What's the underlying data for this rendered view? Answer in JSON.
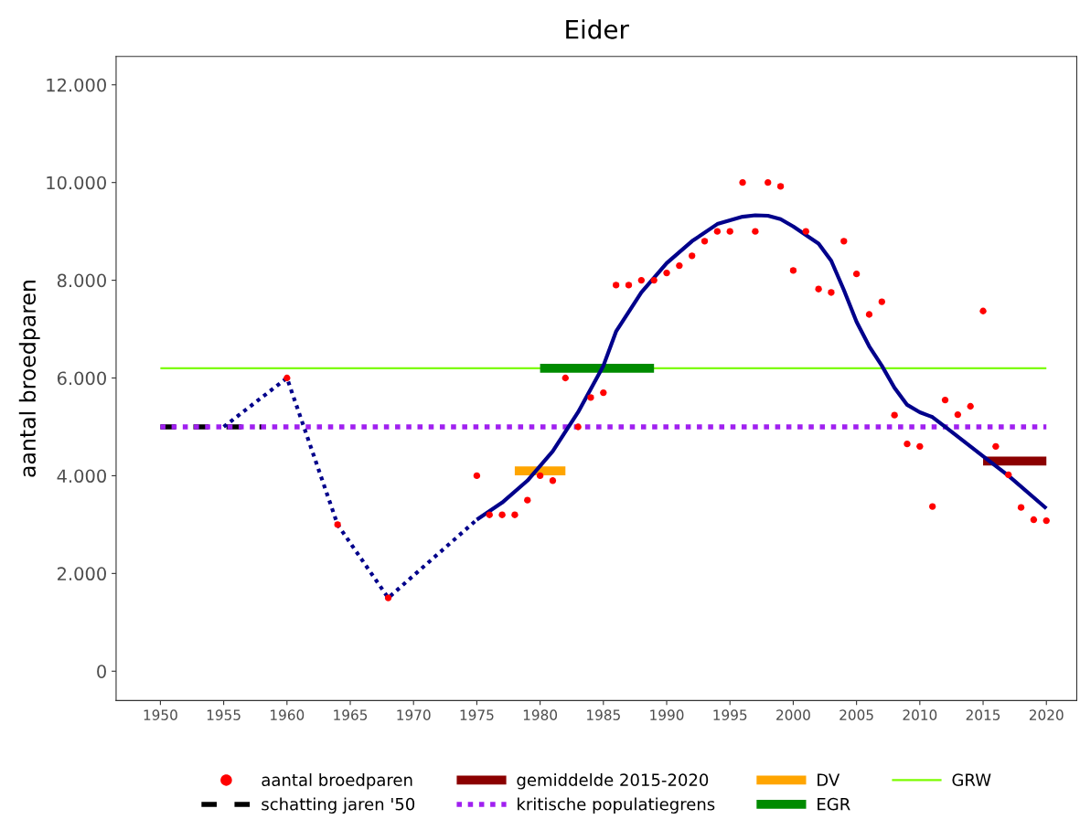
{
  "chart_data": {
    "type": "line",
    "title": "Eider",
    "ylabel": "aantal broedparen",
    "xlim": [
      1946.5,
      2022.4
    ],
    "xticks": [
      1950,
      1955,
      1960,
      1965,
      1970,
      1975,
      1980,
      1985,
      1990,
      1995,
      2000,
      2005,
      2010,
      2015,
      2020
    ],
    "ylim": [
      -600,
      12580
    ],
    "yticks": [
      0,
      {
        "value": 2000,
        "label": "2.000"
      },
      {
        "value": 4000,
        "label": "4.000"
      },
      {
        "value": 6000,
        "label": "6.000"
      },
      {
        "value": 8000,
        "label": "8.000"
      },
      {
        "value": 10000,
        "label": "10.000"
      },
      {
        "value": 12000,
        "label": "12.000"
      }
    ],
    "legend": "bottom",
    "series": [
      {
        "type": "scatter",
        "marker": "circle",
        "color": "#ff0000",
        "name": "aantal broedparen",
        "x": [
          1960,
          1964,
          1968,
          1975,
          1976,
          1977,
          1978,
          1979,
          1980,
          1981,
          1982,
          1983,
          1984,
          1985,
          1986,
          1987,
          1988,
          1989,
          1990,
          1991,
          1992,
          1993,
          1994,
          1995,
          1996,
          1997,
          1998,
          1999,
          2000,
          2001,
          2002,
          2003,
          2004,
          2005,
          2006,
          2007,
          2008,
          2009,
          2010,
          2011,
          2012,
          2013,
          2014,
          2015,
          2016,
          2017,
          2018,
          2019,
          2020
        ],
        "values": [
          6000,
          3000,
          1500,
          4000,
          3200,
          3200,
          3200,
          3500,
          4000,
          3900,
          6000,
          5000,
          5600,
          5700,
          7900,
          7900,
          8000,
          8000,
          8150,
          8300,
          8500,
          8800,
          9000,
          9000,
          10000,
          9000,
          10000,
          9920,
          8200,
          9000,
          7820,
          7750,
          8800,
          8130,
          7300,
          7560,
          5240,
          4650,
          4600,
          3370,
          5550,
          5250,
          5420,
          7370,
          4600,
          4020,
          3350,
          3100,
          3080
        ]
      },
      {
        "color": "#000000",
        "line_style": "dashed",
        "name": "schatting jaren '50",
        "x": [
          1950,
          1958
        ],
        "values": [
          5000,
          5000
        ]
      },
      {
        "color": "#8b0000",
        "line_style": "solid",
        "name": "gemiddelde 2015-2020",
        "x": [
          2015,
          2020
        ],
        "values": [
          4300,
          4300
        ]
      },
      {
        "color": "#a020f0",
        "line_style": "dotted",
        "name": "kritische populatiegrens",
        "x": [
          1950,
          2020
        ],
        "values": [
          5000,
          5000
        ]
      },
      {
        "color": "#ffa500",
        "line_style": "solid",
        "name": "DV",
        "x": [
          1978,
          1982
        ],
        "values": [
          4100,
          4100
        ]
      },
      {
        "color": "#008b00",
        "line_style": "solid",
        "name": "EGR",
        "x": [
          1980,
          1989
        ],
        "values": [
          6200,
          6200
        ]
      },
      {
        "color": "#7cfc00",
        "line_style": "solid",
        "name": "GRW",
        "x": [
          1950,
          2020
        ],
        "values": [
          6200,
          6200
        ]
      },
      {
        "color": "#00008b",
        "line_style": "dotted",
        "x": [
          1955,
          1960,
          1964,
          1968,
          1975
        ],
        "values": [
          5000,
          6000,
          3000,
          1500,
          3100
        ]
      },
      {
        "color": "#00008b",
        "line_style": "solid",
        "x": [
          1975,
          1977,
          1979,
          1981,
          1983,
          1985,
          1986,
          1988,
          1990,
          1992,
          1994,
          1996,
          1997,
          1998,
          1999,
          2000,
          2002,
          2003,
          2004,
          2005,
          2006,
          2007,
          2008,
          2009,
          2010,
          2011,
          2012,
          2013,
          2015,
          2017,
          2020
        ],
        "values": [
          3100,
          3450,
          3900,
          4500,
          5300,
          6250,
          6950,
          7750,
          8350,
          8800,
          9150,
          9300,
          9330,
          9320,
          9250,
          9100,
          8750,
          8400,
          7800,
          7150,
          6650,
          6250,
          5800,
          5450,
          5300,
          5200,
          5000,
          4800,
          4400,
          4000,
          3330
        ]
      }
    ]
  }
}
